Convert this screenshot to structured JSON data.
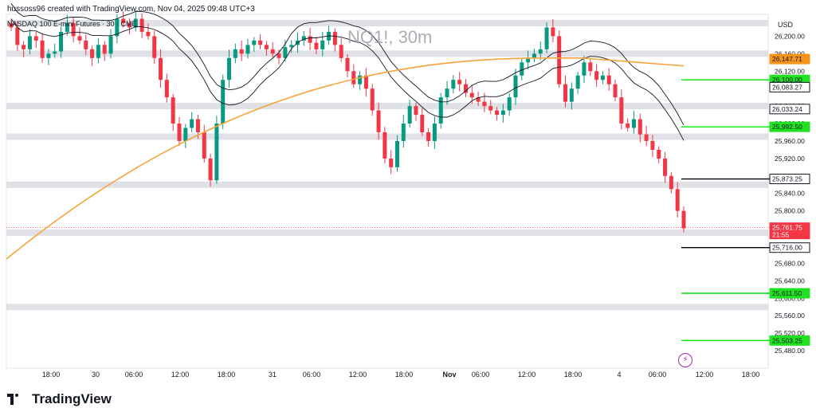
{
  "header": {
    "attribution": "hussoss96 created with TradingView.com, Nov 04, 2025 09:48 UTC+3",
    "symbol_line": "NASDAQ 100 E-mini Futures · 30 · CME",
    "watermark": "NQ1!, 30m"
  },
  "brand": {
    "name": "TradingView"
  },
  "price_axis": {
    "currency": "USD"
  },
  "icons": {
    "alert": "lightning-icon"
  },
  "colors": {
    "up": "#089981",
    "down": "#f23645",
    "ma_orange": "#f7a43a",
    "band_black": "#131722",
    "support_green": "#00e600",
    "level_black": "#000000",
    "zone_gray": "#dcdee3"
  },
  "chart_data": {
    "type": "candlestick",
    "title": "",
    "y_unit": "USD",
    "ylim": [
      25440,
      26250
    ],
    "y_ticks": [
      26200,
      26160,
      26120,
      26080,
      26040,
      26000,
      25960,
      25920,
      25880,
      25840,
      25800,
      25760,
      25720,
      25680,
      25640,
      25600,
      25560,
      25520,
      25480
    ],
    "x_tick_labels": [
      "18:00",
      "30",
      "06:00",
      "12:00",
      "18:00",
      "31",
      "06:00",
      "12:00",
      "18:00",
      "Nov",
      "06:00",
      "12:00",
      "18:00",
      "4",
      "06:00",
      "12:00",
      "18:00"
    ],
    "candles_approx_close": [
      26220,
      26180,
      26170,
      26200,
      26190,
      26150,
      26160,
      26165,
      26210,
      26230,
      26200,
      26190,
      26170,
      26150,
      26180,
      26160,
      26200,
      26240,
      26230,
      26220,
      26240,
      26210,
      26200,
      26150,
      26100,
      26060,
      26000,
      25960,
      25990,
      26010,
      25980,
      25920,
      25870,
      26000,
      26100,
      26150,
      26170,
      26160,
      26180,
      26190,
      26180,
      26170,
      26160,
      26150,
      26175,
      26180,
      26190,
      26200,
      26185,
      26170,
      26190,
      26210,
      26180,
      26150,
      26120,
      26090,
      26110,
      26080,
      26030,
      25980,
      25920,
      25900,
      25960,
      26000,
      26040,
      26020,
      25980,
      25960,
      26000,
      26060,
      26080,
      26100,
      26090,
      26070,
      26060,
      26050,
      26040,
      26030,
      26020,
      26030,
      26060,
      26110,
      26140,
      26150,
      26160,
      26170,
      26220,
      26200,
      26090,
      26050,
      26080,
      26110,
      26140,
      26120,
      26100,
      26110,
      26090,
      26060,
      26000,
      25990,
      26010,
      25975,
      25960,
      25940,
      25920,
      25880,
      25850,
      25800,
      25760
    ],
    "last_price": 25761.75,
    "countdown": "21:55",
    "moving_averages": [
      {
        "label": "",
        "color": "orange",
        "approx_values_note": ""
      }
    ],
    "price_labels": [
      {
        "value": "26,147.71",
        "kind": "orange"
      },
      {
        "value": "26,100.00",
        "kind": "green"
      },
      {
        "value": "26,083.27",
        "kind": "black-outline"
      },
      {
        "value": "26,033.24",
        "kind": "black-outline"
      },
      {
        "value": "25,992.50",
        "kind": "green"
      },
      {
        "value": "25,873.25",
        "kind": "black"
      },
      {
        "value": "25,761.75",
        "kind": "red"
      },
      {
        "value": "25,716.00",
        "kind": "black"
      },
      {
        "value": "25,611.50",
        "kind": "green"
      },
      {
        "value": "25,503.25",
        "kind": "green"
      }
    ],
    "horizontal_levels": [
      {
        "value": 26100.0,
        "color": "green"
      },
      {
        "value": 25992.5,
        "color": "green"
      },
      {
        "value": 25873.25,
        "color": "black"
      },
      {
        "value": 25716.0,
        "color": "black"
      },
      {
        "value": 25611.5,
        "color": "green"
      },
      {
        "value": 25503.25,
        "color": "green"
      }
    ],
    "gray_zones": [
      26230,
      26160,
      26040,
      25970,
      25860,
      25750,
      25580
    ],
    "grid": false
  }
}
